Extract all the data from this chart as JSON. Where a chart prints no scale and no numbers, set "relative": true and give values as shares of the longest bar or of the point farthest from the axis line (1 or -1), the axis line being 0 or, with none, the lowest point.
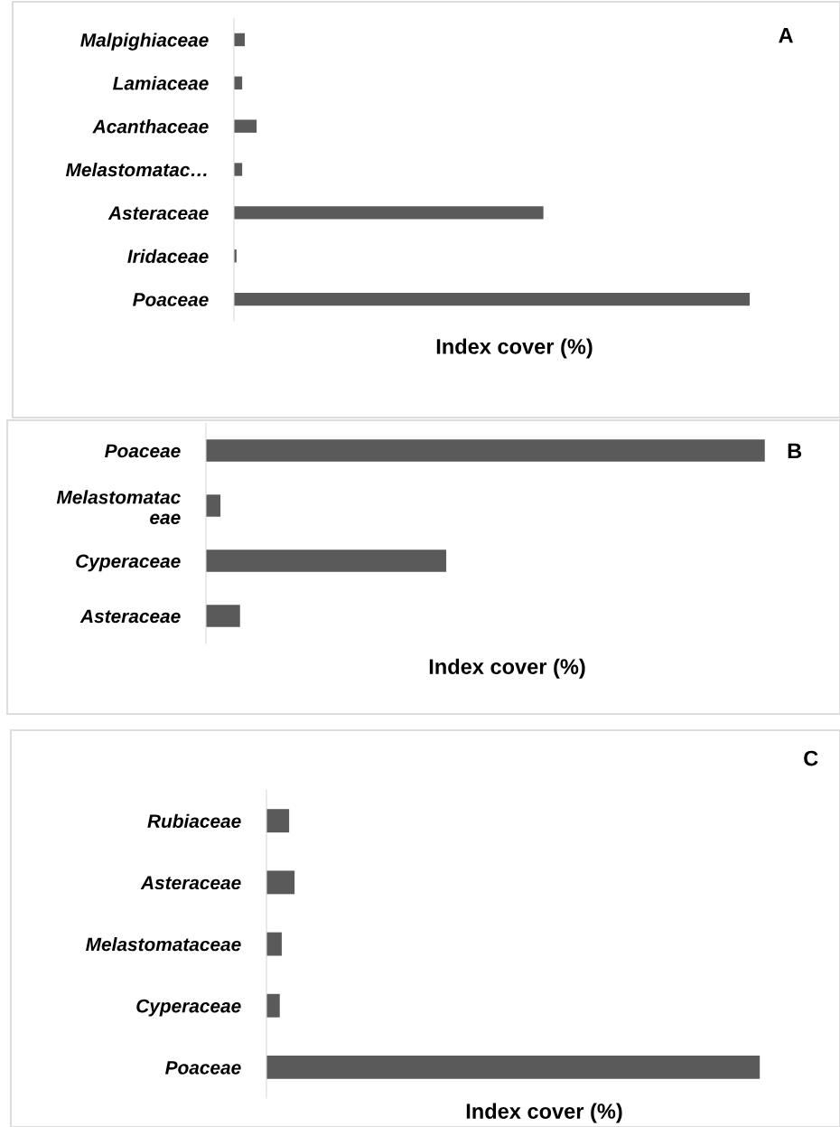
{
  "chart_data": [
    {
      "type": "bar",
      "orientation": "horizontal",
      "relative": true,
      "annotations": [
        "A"
      ],
      "xlabel": "Index cover (%)",
      "color": "#5a5a5a",
      "categories": [
        "Malpighiaceae",
        "Lamiaceae",
        "Acanthaceae",
        "Melastomatac…",
        "Asteraceae",
        "Iridaceae",
        "Poaceae"
      ],
      "values": [
        0.021,
        0.016,
        0.044,
        0.016,
        0.6,
        0.005,
        1
      ]
    },
    {
      "type": "bar",
      "orientation": "horizontal",
      "relative": true,
      "annotations": [
        "B"
      ],
      "xlabel": "Index cover (%)",
      "color": "#5a5a5a",
      "categories": [
        "Poaceae",
        "Melastomatac\neae",
        "Cyperaceae",
        "Asteraceae"
      ],
      "values": [
        1,
        0.026,
        0.43,
        0.061
      ]
    },
    {
      "type": "bar",
      "orientation": "horizontal",
      "relative": true,
      "annotations": [
        "C"
      ],
      "xlabel": "Index cover (%)",
      "color": "#5a5a5a",
      "categories": [
        "Rubiaceae",
        "Asteraceae",
        "Melastomataceae",
        "Cyperaceae",
        "Poaceae"
      ],
      "values": [
        0.046,
        0.057,
        0.031,
        0.027,
        1
      ]
    }
  ]
}
